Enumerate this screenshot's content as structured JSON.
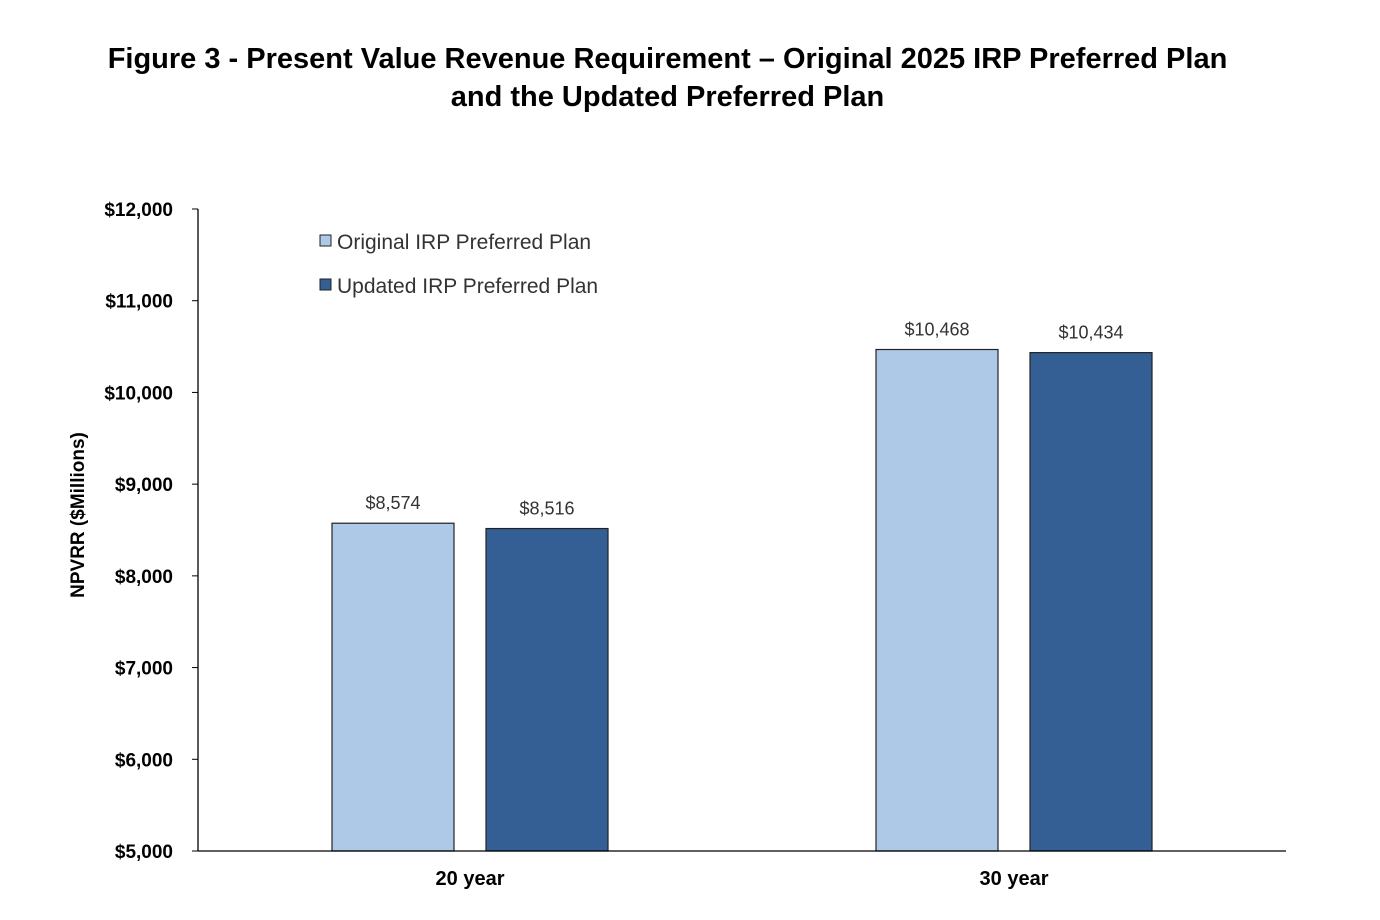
{
  "title_line1": "Figure 3 - Present Value Revenue Requirement – Original 2025 IRP Preferred Plan",
  "title_line2": "and the Updated Preferred Plan",
  "chart_data": {
    "type": "bar",
    "title": "Figure 3 - Present Value Revenue Requirement – Original 2025 IRP Preferred Plan and the Updated Preferred Plan",
    "xlabel": "",
    "ylabel": "NPVRR ($Millions)",
    "ylim": [
      5000,
      12000
    ],
    "yticks": [
      5000,
      6000,
      7000,
      8000,
      9000,
      10000,
      11000,
      12000
    ],
    "ytick_labels": [
      "$5,000",
      "$6,000",
      "$7,000",
      "$8,000",
      "$9,000",
      "$10,000",
      "$11,000",
      "$12,000"
    ],
    "categories": [
      "20 year",
      "30 year"
    ],
    "series": [
      {
        "name": "Original IRP Preferred Plan",
        "values": [
          8574,
          10468
        ],
        "labels": [
          "$8,574",
          "$10,468"
        ],
        "color": "#aec9e8"
      },
      {
        "name": "Updated IRP Preferred Plan",
        "values": [
          8516,
          10434
        ],
        "labels": [
          "$8,516",
          "$10,434"
        ],
        "color": "#335f94"
      }
    ],
    "legend": "top-left",
    "grid": false
  }
}
